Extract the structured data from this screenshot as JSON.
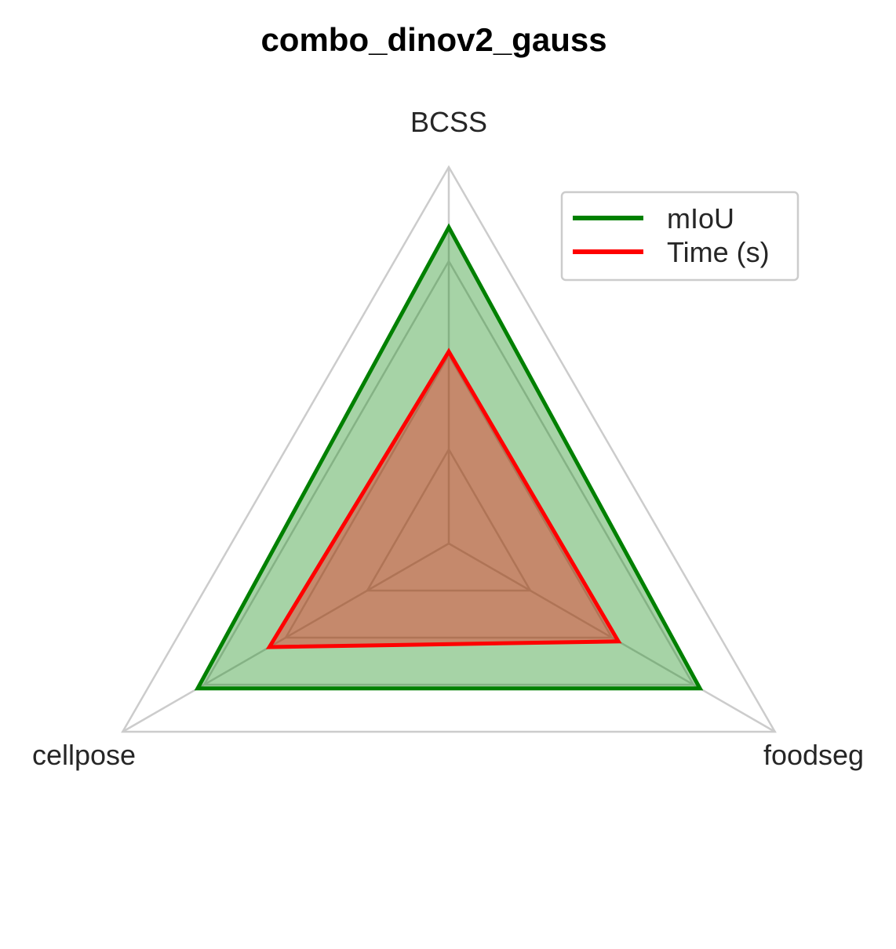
{
  "chart_data": {
    "type": "radar",
    "title": "combo_dinov2_gauss",
    "axes": [
      "BCSS",
      "cellpose",
      "foodseg"
    ],
    "rmax": 1.0,
    "grid_levels": [
      0.25,
      0.5,
      0.75,
      1.0
    ],
    "grid": true,
    "legend_position": "top-right",
    "series": [
      {
        "name": "mIoU",
        "values": [
          0.84,
          0.77,
          0.77
        ],
        "color": "#008000",
        "fill": true
      },
      {
        "name": "Time (s)",
        "values": [
          0.51,
          0.52,
          0.55
        ],
        "color": "#ff0000",
        "fill": true
      }
    ]
  }
}
